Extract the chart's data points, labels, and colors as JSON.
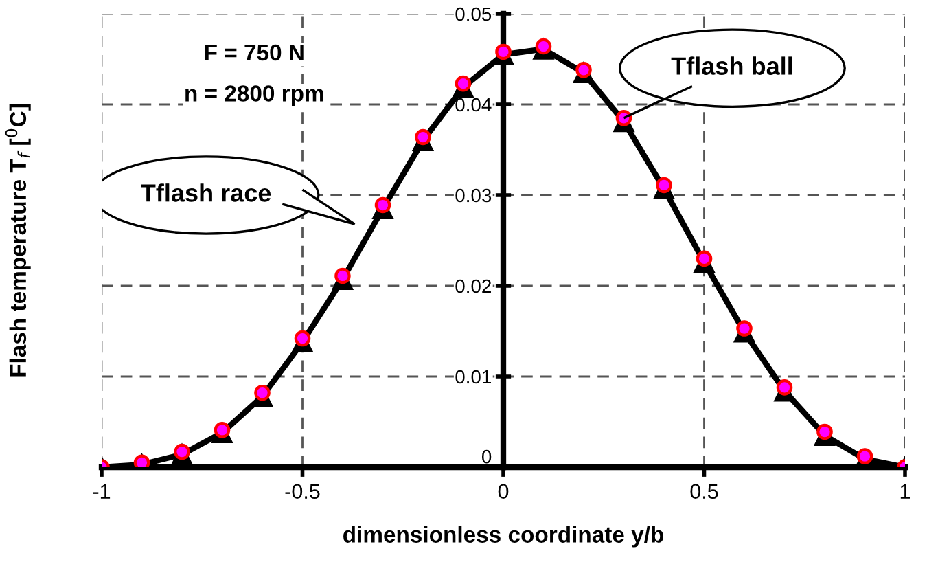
{
  "chart_data": {
    "type": "line",
    "xlabel": "dimensionless coordinate y/b",
    "ylabel": "Flash temperature T$_{f}$ [$^{0}$C]",
    "x": [
      -1,
      -0.9,
      -0.8,
      -0.7,
      -0.6,
      -0.5,
      -0.4,
      -0.3,
      -0.2,
      -0.1,
      0,
      0.1,
      0.2,
      0.3,
      0.4,
      0.5,
      0.6,
      0.7,
      0.8,
      0.9,
      1
    ],
    "series": [
      {
        "type": "line",
        "color": "#000000",
        "marker": "triangle",
        "values": [
          0,
          0.0003,
          0.0014,
          0.0038,
          0.0078,
          0.0138,
          0.0207,
          0.0285,
          0.036,
          0.0419,
          0.0455,
          0.0461,
          0.0435,
          0.0381,
          0.0307,
          0.0226,
          0.0149,
          0.0084,
          0.0035,
          0.0009,
          0
        ]
      },
      {
        "type": "scatter",
        "color": "#ff00ff",
        "marker": "circle",
        "values": [
          0,
          0.0005,
          0.0017,
          0.0041,
          0.0082,
          0.0142,
          0.0211,
          0.0289,
          0.0364,
          0.0423,
          0.0458,
          0.0464,
          0.0438,
          0.0385,
          0.0311,
          0.023,
          0.0153,
          0.0088,
          0.0039,
          0.0012,
          0
        ]
      }
    ],
    "xlim": [
      -1,
      1
    ],
    "ylim": [
      0,
      0.05
    ],
    "xticks": [
      -1,
      -0.5,
      0,
      0.5,
      1
    ],
    "yticks": [
      0,
      0.01,
      0.02,
      0.03,
      0.04,
      0.05
    ],
    "grid": true,
    "legend": false,
    "line_style": "solid",
    "annotations": [
      "F = 750 N",
      "n = 2800 rpm",
      "Tflash race",
      "Tflash ball"
    ]
  }
}
